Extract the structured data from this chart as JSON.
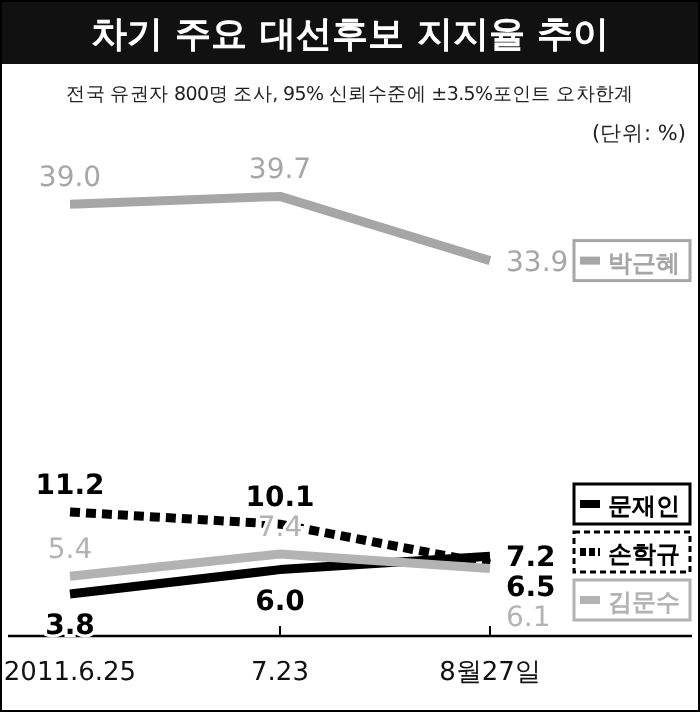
{
  "chart_data": {
    "type": "line",
    "title": "차기 주요 대선후보 지지율 추이",
    "subtitle": "전국 유권자 800명 조사, 95% 신뢰수준에 ±3.5%포인트 오차한계",
    "annotations": [
      "(단위: %)"
    ],
    "categories": [
      "2011.6.25",
      "7.23",
      "8월27일"
    ],
    "tick_labels": "x",
    "legend": "right",
    "series": [
      {
        "name": "박근혜",
        "color": "#a6a6a6",
        "line_style": "solid",
        "values": [
          39.0,
          39.7,
          33.9
        ],
        "value_labels": [
          "39.0",
          "39.7",
          "33.9"
        ]
      },
      {
        "name": "문재인",
        "color": "#000000",
        "line_style": "solid",
        "values": [
          3.8,
          6.0,
          7.2
        ],
        "value_labels": [
          "3.8",
          "6.0",
          "7.2"
        ]
      },
      {
        "name": "손학규",
        "color": "#000000",
        "line_style": "dashed",
        "values": [
          11.2,
          10.1,
          6.5
        ],
        "value_labels": [
          "11.2",
          "10.1",
          "6.5"
        ]
      },
      {
        "name": "김문수",
        "color": "#b3b3b3",
        "line_style": "solid",
        "values": [
          5.4,
          7.4,
          6.1
        ],
        "value_labels": [
          "5.4",
          "7.4",
          "6.1"
        ]
      }
    ]
  }
}
